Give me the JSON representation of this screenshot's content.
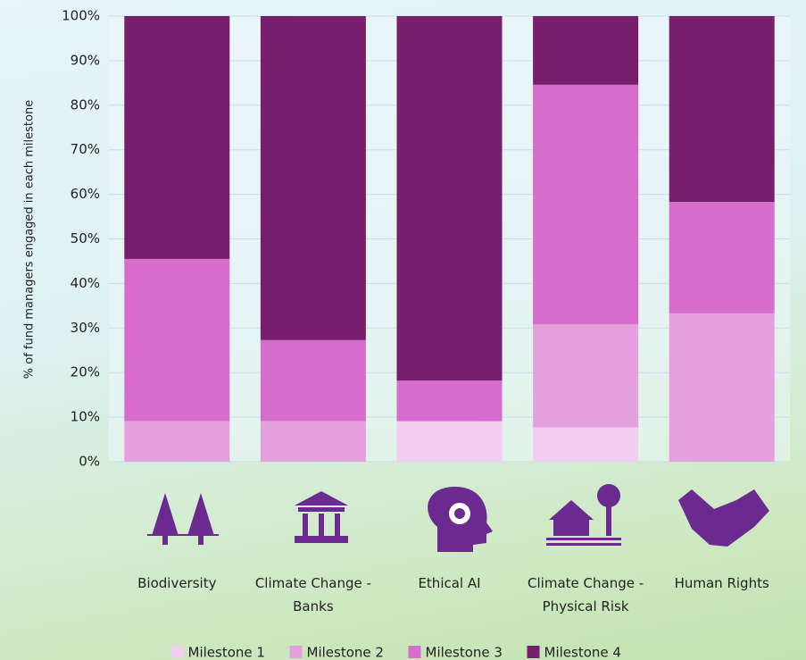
{
  "chart_data": {
    "type": "stacked_bar",
    "y_label": "% of fund managers engaged in each milestone",
    "categories": [
      "Biodiversity",
      "Climate Change - Banks",
      "Ethical AI",
      "Climate Change - Physical Risk",
      "Human Rights"
    ],
    "series": [
      {
        "name": "Milestone 1",
        "color": "#f2cff0",
        "values": [
          0,
          0,
          9.1,
          7.7,
          0
        ]
      },
      {
        "name": "Milestone 2",
        "color": "#e4a0dd",
        "values": [
          9.1,
          9.1,
          0,
          23.1,
          33.3
        ]
      },
      {
        "name": "Milestone 3",
        "color": "#d66dcd",
        "values": [
          36.4,
          18.2,
          9.1,
          53.8,
          25
        ]
      },
      {
        "name": "Milestone 4",
        "color": "#771f6c",
        "values": [
          54.5,
          72.7,
          81.8,
          15.4,
          41.7
        ]
      }
    ],
    "ylim": [
      0,
      100
    ],
    "yticks": [
      {
        "value": 0,
        "label": "0%"
      },
      {
        "value": 10,
        "label": "10%"
      },
      {
        "value": 20,
        "label": "20%"
      },
      {
        "value": 30,
        "label": "30%"
      },
      {
        "value": 40,
        "label": "40%"
      },
      {
        "value": 50,
        "label": "50%"
      },
      {
        "value": 60,
        "label": "60%"
      },
      {
        "value": 70,
        "label": "70%"
      },
      {
        "value": 80,
        "label": "80%"
      },
      {
        "value": 90,
        "label": "90%"
      },
      {
        "value": 100,
        "label": "100%"
      }
    ],
    "grid": true
  }
}
